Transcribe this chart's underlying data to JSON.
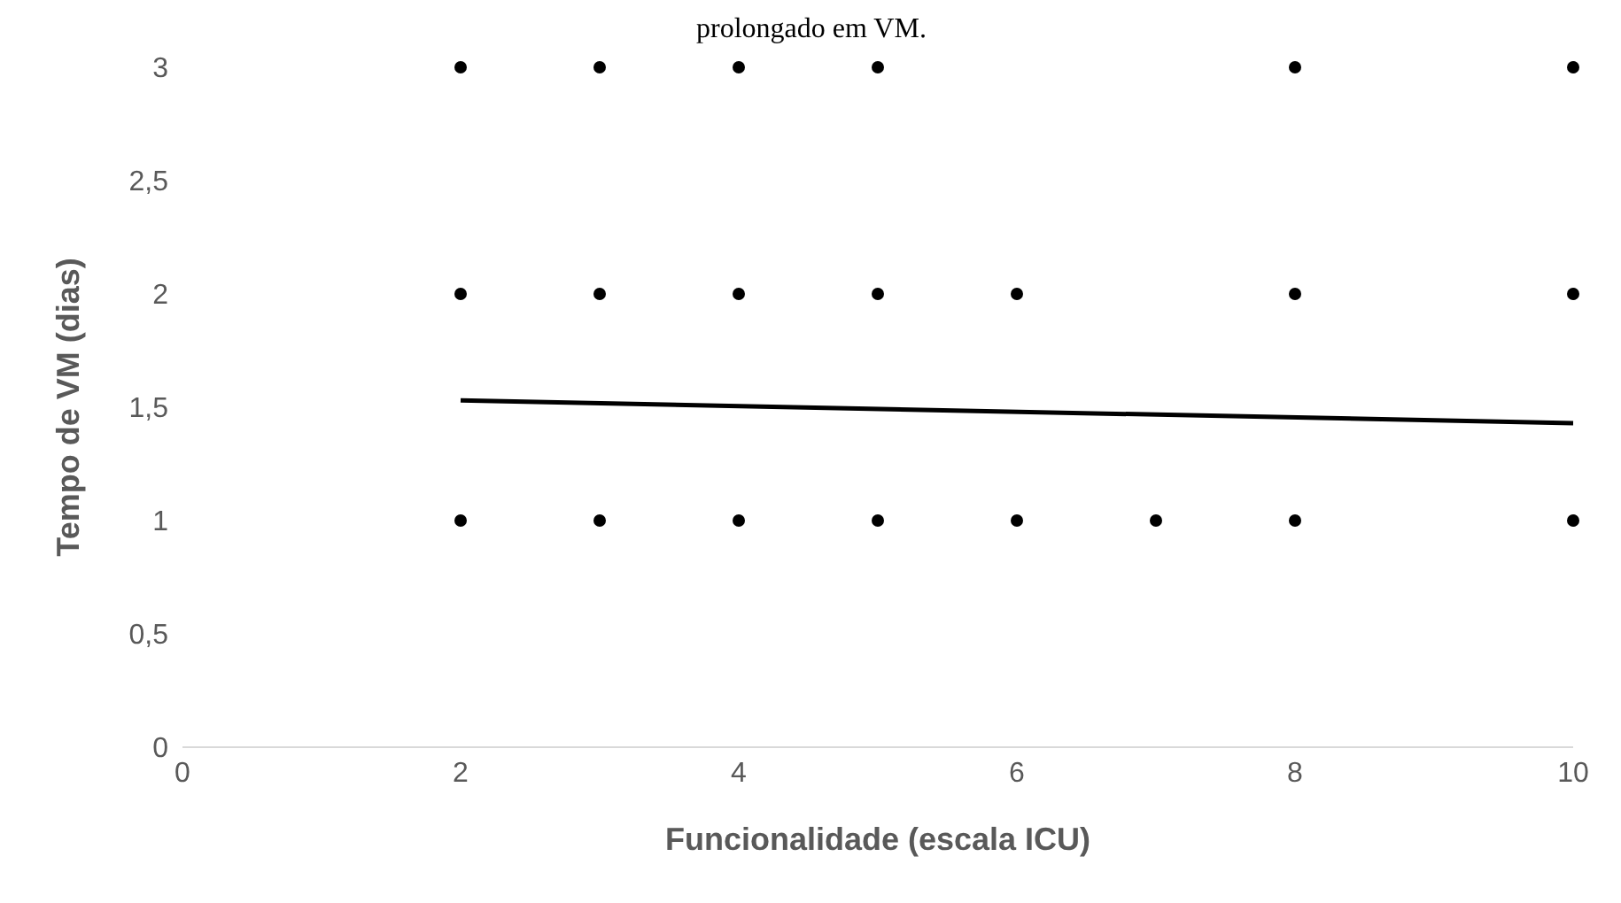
{
  "chart_data": {
    "type": "scatter",
    "title": "prolongado em VM.",
    "xlabel": "Funcionalidade (escala ICU)",
    "ylabel": "Tempo de VM (dias)",
    "xlim": [
      0,
      10
    ],
    "xticks": [
      0,
      2,
      4,
      6,
      8,
      10
    ],
    "ylim": [
      0,
      3
    ],
    "yticks": [
      0,
      {
        "value": 0.5,
        "label": "0,5"
      },
      1,
      {
        "value": 1.5,
        "label": "1,5"
      },
      2,
      {
        "value": 2.5,
        "label": "2,5"
      },
      3
    ],
    "grid": false,
    "legend": false,
    "marker": "circle",
    "series": [
      {
        "type": "scatter",
        "color": "#000000",
        "x": [
          2,
          2,
          2,
          3,
          3,
          3,
          4,
          4,
          4,
          5,
          5,
          5,
          6,
          6,
          7,
          8,
          8,
          8,
          10,
          10,
          10
        ],
        "values": [
          1,
          2,
          3,
          1,
          2,
          3,
          1,
          2,
          3,
          1,
          2,
          3,
          1,
          2,
          1,
          1,
          2,
          3,
          1,
          2,
          3
        ]
      },
      {
        "type": "line",
        "color": "#000000",
        "marker": "none",
        "x": [
          2,
          10
        ],
        "values": [
          1.53,
          1.43
        ]
      }
    ]
  }
}
